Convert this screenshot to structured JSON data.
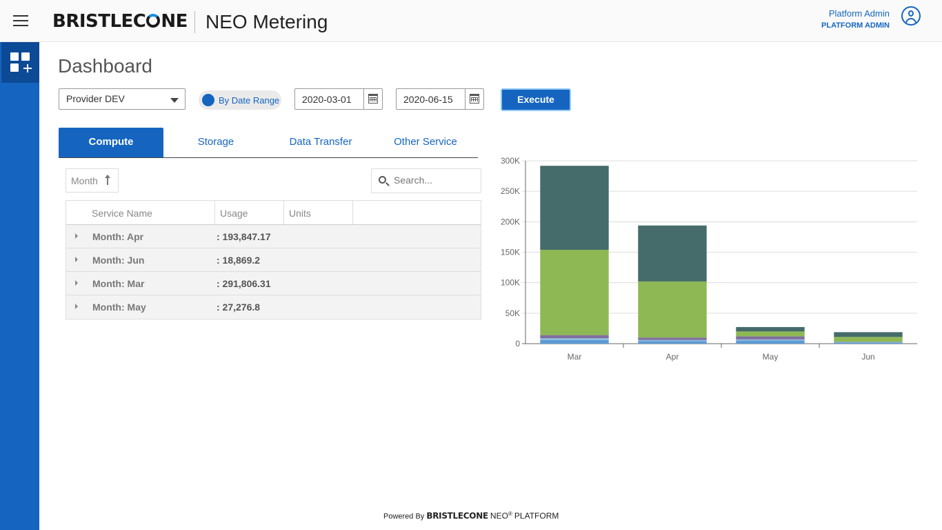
{
  "header": {
    "logo_text_1": "BRISTLEC",
    "logo_text_2": "NE",
    "app_title": "NEO Metering",
    "user_name": "Platform Admin",
    "user_role": "PLATFORM ADMIN"
  },
  "page": {
    "title": "Dashboard"
  },
  "filters": {
    "provider": "Provider DEV",
    "toggle_label": "By Date Range",
    "start_date": "2020-03-01",
    "end_date": "2020-06-15",
    "execute_label": "Execute"
  },
  "tabs": [
    {
      "label": "Compute",
      "active": true
    },
    {
      "label": "Storage",
      "active": false
    },
    {
      "label": "Data Transfer",
      "active": false
    },
    {
      "label": "Other Service",
      "active": false
    }
  ],
  "grid": {
    "group_chip": "Month",
    "search_placeholder": "Search...",
    "columns": [
      "Service Name",
      "Usage",
      "Units"
    ],
    "rows": [
      {
        "label": "Month: Apr",
        "value": ": 193,847.17"
      },
      {
        "label": "Month: Jun",
        "value": ": 18,869.2"
      },
      {
        "label": "Month: Mar",
        "value": ": 291,806.31"
      },
      {
        "label": "Month: May",
        "value": ": 27,276.8"
      }
    ]
  },
  "chart_data": {
    "type": "bar",
    "stacked": true,
    "categories": [
      "Mar",
      "Apr",
      "May",
      "Jun"
    ],
    "ylim": [
      0,
      300000
    ],
    "yticks": [
      "0",
      "50K",
      "100K",
      "150K",
      "200K",
      "250K",
      "300K"
    ],
    "ytick_values": [
      0,
      50000,
      100000,
      150000,
      200000,
      250000,
      300000
    ],
    "grid": true,
    "legend": "none",
    "series": [
      {
        "color": "#5b9bd5",
        "values": [
          6000,
          4000,
          5000,
          2000
        ]
      },
      {
        "color": "#8fb8de",
        "values": [
          3000,
          2000,
          2000,
          500
        ]
      },
      {
        "color": "#7e6f9e",
        "values": [
          5000,
          4000,
          5000,
          500
        ]
      },
      {
        "color": "#8db854",
        "values": [
          140000,
          92000,
          8000,
          8000
        ]
      },
      {
        "color": "#456b6a",
        "values": [
          137806.31,
          91847.17,
          7276.8,
          7869.2
        ]
      }
    ]
  },
  "footer": {
    "powered_by": "Powered By",
    "brand": "BRISTLECONE",
    "neo": "NEO",
    "reg": "®",
    "platform": "PLATFORM"
  }
}
